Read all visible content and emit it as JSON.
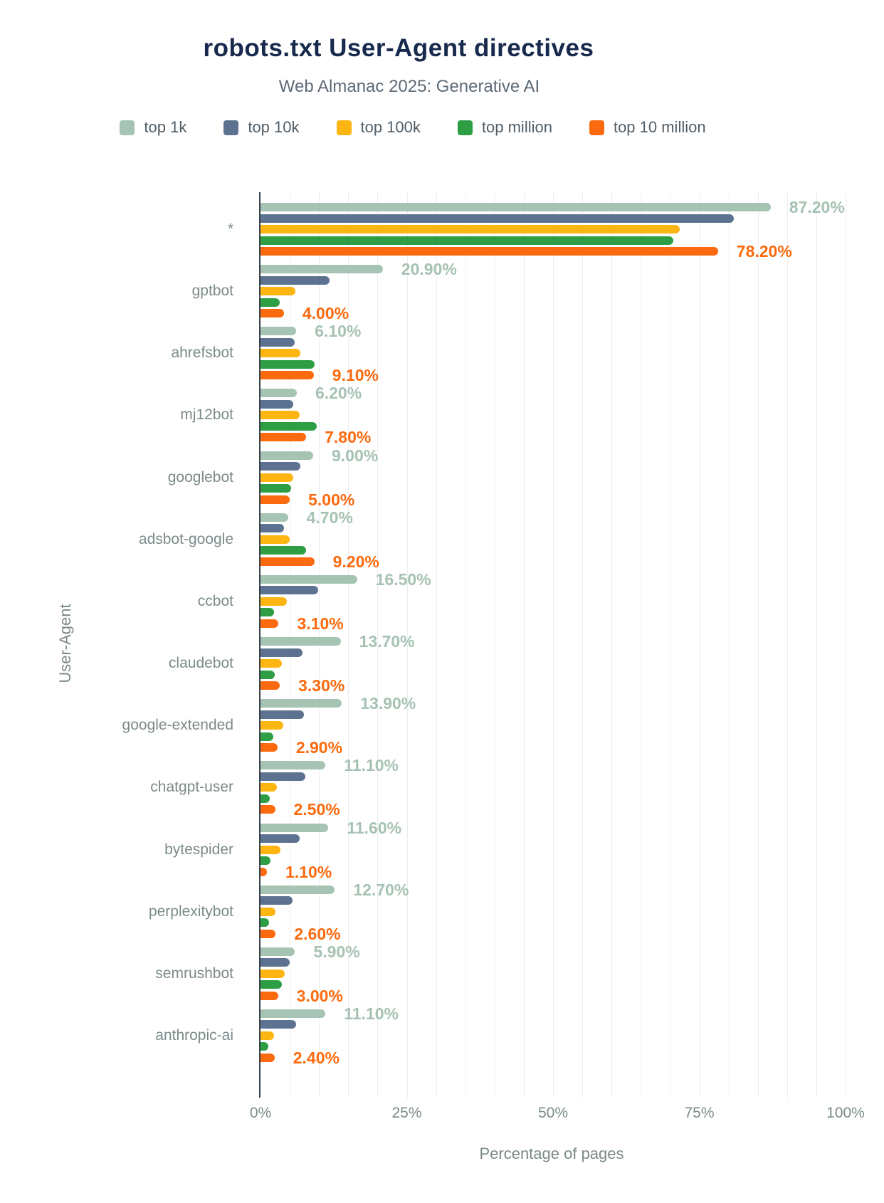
{
  "title": "robots.txt User-Agent directives",
  "subtitle": "Web Almanac 2025: Generative AI",
  "colors": {
    "title": "#17294d",
    "subtitle": "#5d6a77",
    "axis_line": "#37424b",
    "gridline": "#ebedee",
    "tick_text": "#7c8a8a",
    "category_text": "#7c8a8a"
  },
  "legend": {
    "items": [
      {
        "label": "top 1k",
        "color": "#a6c4b3"
      },
      {
        "label": "top 10k",
        "color": "#5d7290"
      },
      {
        "label": "top 100k",
        "color": "#fcb511"
      },
      {
        "label": "top million",
        "color": "#2e9e44"
      },
      {
        "label": "top 10 million",
        "color": "#fb6a0e"
      }
    ],
    "position": "top-center"
  },
  "chart_data": {
    "type": "bar",
    "orientation": "horizontal",
    "title": "robots.txt User-Agent directives",
    "subtitle": "Web Almanac 2025: Generative AI",
    "xlabel": "Percentage of pages",
    "ylabel": "User-Agent",
    "xlim": [
      0,
      100
    ],
    "xticks": [
      "0%",
      "25%",
      "50%",
      "75%",
      "100%"
    ],
    "xtick_values": [
      0,
      25,
      50,
      75,
      100
    ],
    "grid": "vertical, every 5%",
    "categories": [
      "*",
      "gptbot",
      "ahrefsbot",
      "mj12bot",
      "googlebot",
      "adsbot-google",
      "ccbot",
      "claudebot",
      "google-extended",
      "chatgpt-user",
      "bytespider",
      "perplexitybot",
      "semrushbot",
      "anthropic-ai"
    ],
    "series": [
      {
        "name": "top 1k",
        "color": "#a6c4b3",
        "label_color": "#a6c2b2",
        "values": [
          87.2,
          20.9,
          6.1,
          6.2,
          9.0,
          4.7,
          16.5,
          13.7,
          13.9,
          11.1,
          11.6,
          12.7,
          5.9,
          11.1
        ],
        "data_labels": [
          "87.20%",
          "20.90%",
          "6.10%",
          "6.20%",
          "9.00%",
          "4.70%",
          "16.50%",
          "13.70%",
          "13.90%",
          "11.10%",
          "11.60%",
          "12.70%",
          "5.90%",
          "11.10%"
        ]
      },
      {
        "name": "top 10k",
        "color": "#5d7290",
        "values": [
          80.9,
          11.8,
          5.8,
          5.6,
          6.8,
          4.0,
          9.9,
          7.2,
          7.4,
          7.7,
          6.7,
          5.5,
          5.0,
          6.1
        ],
        "data_labels": null
      },
      {
        "name": "top 100k",
        "color": "#fcb511",
        "values": [
          71.6,
          6.0,
          6.8,
          6.7,
          5.6,
          5.0,
          4.5,
          3.7,
          3.9,
          2.8,
          3.4,
          2.6,
          4.1,
          2.3
        ],
        "data_labels": null
      },
      {
        "name": "top million",
        "color": "#2e9e44",
        "values": [
          70.6,
          3.3,
          9.3,
          9.6,
          5.2,
          7.8,
          2.3,
          2.4,
          2.2,
          1.6,
          1.7,
          1.5,
          3.7,
          1.3
        ],
        "data_labels": null
      },
      {
        "name": "top 10 million",
        "color": "#fb6a0e",
        "label_color": "#fb6a0e",
        "values": [
          78.2,
          4.0,
          9.1,
          7.8,
          5.0,
          9.2,
          3.1,
          3.3,
          2.9,
          2.5,
          1.1,
          2.6,
          3.0,
          2.4
        ],
        "data_labels": [
          "78.20%",
          "4.00%",
          "9.10%",
          "7.80%",
          "5.00%",
          "9.20%",
          "3.10%",
          "3.30%",
          "2.90%",
          "2.50%",
          "1.10%",
          "2.60%",
          "3.00%",
          "2.40%"
        ]
      }
    ]
  }
}
